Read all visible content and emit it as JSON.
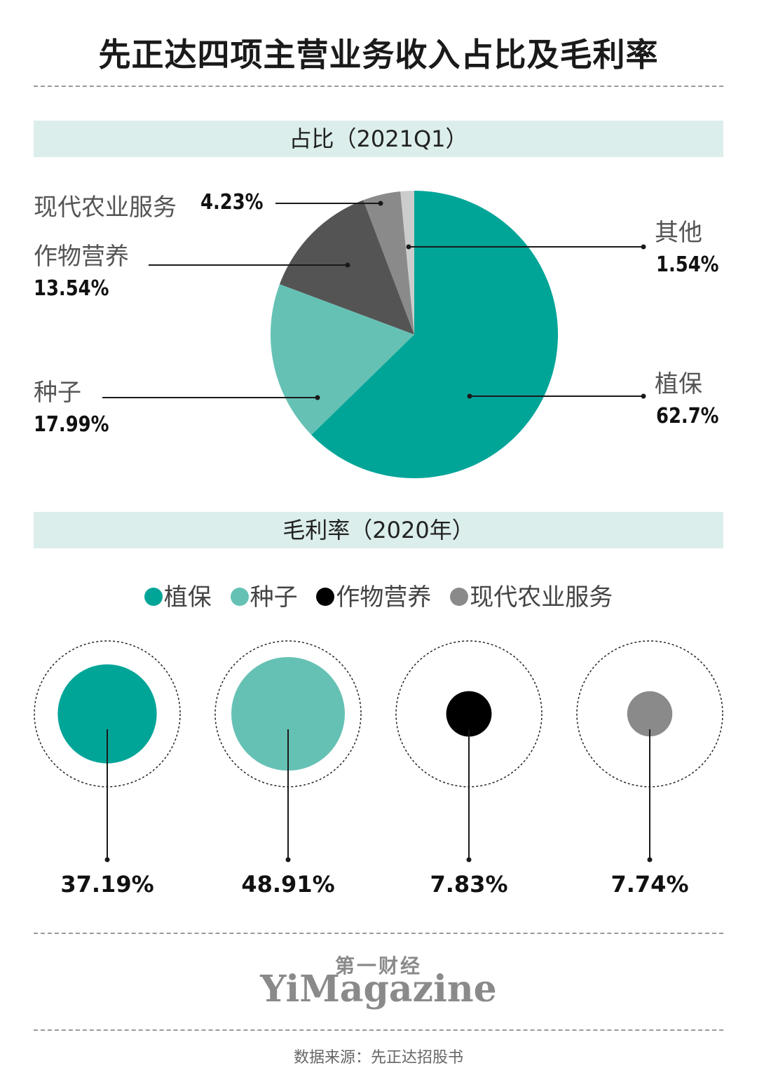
{
  "title": "先正达四项主营业务收入占比及毛利率",
  "section1_title": "占比（2021Q1）",
  "section2_title": "毛利率（2020年）",
  "chart_data": [
    {
      "type": "pie",
      "title": "占比（2021Q1）",
      "slices": [
        {
          "label": "植保",
          "value": 62.7,
          "value_text": "62.7%",
          "color": "#00a598"
        },
        {
          "label": "种子",
          "value": 17.99,
          "value_text": "17.99%",
          "color": "#66c1b5"
        },
        {
          "label": "作物营养",
          "value": 13.54,
          "value_text": "13.54%",
          "color": "#545454"
        },
        {
          "label": "现代农业服务",
          "value": 4.23,
          "value_text": "4.23%",
          "color": "#8a8a8a"
        },
        {
          "label": "其他",
          "value": 1.54,
          "value_text": "1.54%",
          "color": "#cccccc"
        }
      ]
    },
    {
      "type": "bar",
      "title": "毛利率（2020年）",
      "categories": [
        "植保",
        "种子",
        "作物营养",
        "现代农业服务"
      ],
      "values": [
        37.19,
        48.91,
        7.83,
        7.74
      ],
      "value_texts": [
        "37.19%",
        "48.91%",
        "7.83%",
        "7.74%"
      ],
      "colors": [
        "#00a598",
        "#66c1b5",
        "#000000",
        "#8a8a8a"
      ]
    }
  ],
  "legend": [
    "植保",
    "种子",
    "作物营养",
    "现代农业服务"
  ],
  "logo": {
    "cn": "第一财经",
    "en": "YiMagazine"
  },
  "source": "数据来源：先正达招股书"
}
